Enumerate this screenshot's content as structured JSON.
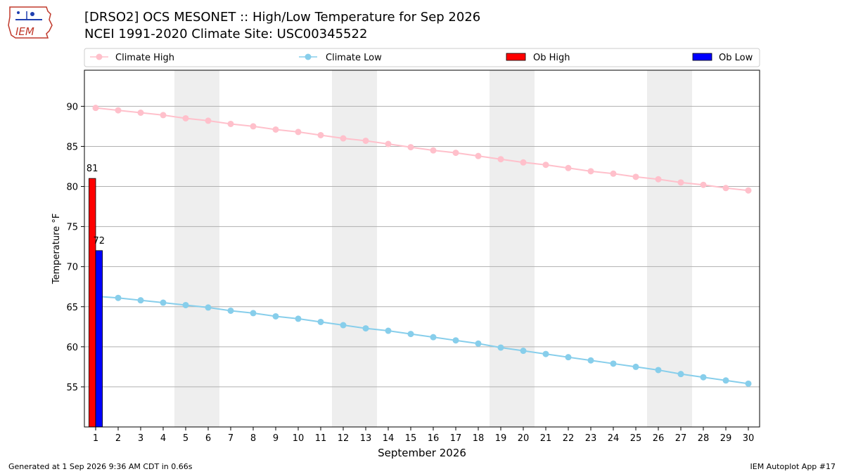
{
  "header": {
    "title_line1": "[DRSO2] OCS MESONET :: High/Low Temperature for Sep 2026",
    "title_line2": "NCEI 1991-2020 Climate Site: USC00345522",
    "logo_text": "IEM"
  },
  "footer": {
    "generated": "Generated at 1 Sep 2026 9:36 AM CDT in 0.66s",
    "app": "IEM Autoplot App #17"
  },
  "colors": {
    "climate_high": "#ffc0cb",
    "climate_low": "#87ceeb",
    "ob_high": "#ff0000",
    "ob_low": "#0000ff",
    "weekend_band": "#eeeeee",
    "grid": "#b0b0b0"
  },
  "chart_data": {
    "type": "bar",
    "xlabel": "September 2026",
    "ylabel": "Temperature °F",
    "xlim": [
      0.5,
      30.5
    ],
    "ylim": [
      50,
      94.5
    ],
    "yticks": [
      55,
      60,
      65,
      70,
      75,
      80,
      85,
      90
    ],
    "x": [
      1,
      2,
      3,
      4,
      5,
      6,
      7,
      8,
      9,
      10,
      11,
      12,
      13,
      14,
      15,
      16,
      17,
      18,
      19,
      20,
      21,
      22,
      23,
      24,
      25,
      26,
      27,
      28,
      29,
      30
    ],
    "grid": "horizontal",
    "legend_position": "top",
    "weekend_days": [
      5,
      6,
      12,
      13,
      19,
      20,
      26,
      27
    ],
    "legend": [
      "Climate High",
      "Climate Low",
      "Ob High",
      "Ob Low"
    ],
    "series": [
      {
        "name": "Climate High",
        "kind": "line",
        "values": [
          89.8,
          89.5,
          89.2,
          88.9,
          88.5,
          88.2,
          87.8,
          87.5,
          87.1,
          86.8,
          86.4,
          86.0,
          85.7,
          85.3,
          84.9,
          84.5,
          84.2,
          83.8,
          83.4,
          83.0,
          82.7,
          82.3,
          81.9,
          81.6,
          81.2,
          80.9,
          80.5,
          80.2,
          79.8,
          79.5
        ]
      },
      {
        "name": "Climate Low",
        "kind": "line",
        "values": [
          66.3,
          66.1,
          65.8,
          65.5,
          65.2,
          64.9,
          64.5,
          64.2,
          63.8,
          63.5,
          63.1,
          62.7,
          62.3,
          62.0,
          61.6,
          61.2,
          60.8,
          60.4,
          59.9,
          59.5,
          59.1,
          58.7,
          58.3,
          57.9,
          57.5,
          57.1,
          56.6,
          56.2,
          55.8,
          55.4
        ]
      },
      {
        "name": "Ob High",
        "kind": "bar",
        "x": [
          1
        ],
        "values": [
          81
        ]
      },
      {
        "name": "Ob Low",
        "kind": "bar",
        "x": [
          1
        ],
        "values": [
          72
        ]
      }
    ],
    "annotations": [
      "81",
      "72"
    ]
  }
}
